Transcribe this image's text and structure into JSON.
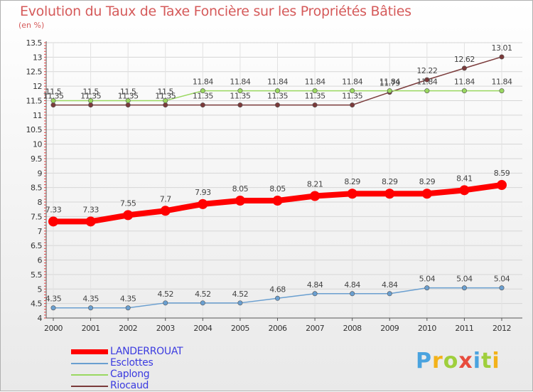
{
  "chart_data": {
    "type": "line",
    "title": "Evolution du Taux de Taxe Foncière sur les Propriétés Bâties",
    "subtitle": "(en %)",
    "x": [
      "2000",
      "2001",
      "2002",
      "2003",
      "2004",
      "2005",
      "2006",
      "2007",
      "2008",
      "2009",
      "2010",
      "2011",
      "2012"
    ],
    "ylim": [
      4,
      13.5
    ],
    "yticks": [
      "4",
      "4.5",
      "5",
      "5.5",
      "6",
      "6.5",
      "7",
      "7.5",
      "8",
      "8.5",
      "9",
      "9.5",
      "10",
      "10.5",
      "11",
      "11.5",
      "12",
      "12.5",
      "13",
      "13.5"
    ],
    "series": [
      {
        "name": "LANDERROUAT",
        "color": "#ff0000",
        "values": [
          7.33,
          7.33,
          7.55,
          7.7,
          7.93,
          8.05,
          8.05,
          8.21,
          8.29,
          8.29,
          8.29,
          8.41,
          8.59
        ],
        "labels": [
          "7.33",
          "7.33",
          "7.55",
          "7.7",
          "7.93",
          "8.05",
          "8.05",
          "8.21",
          "8.29",
          "8.29",
          "8.29",
          "8.41",
          "8.59"
        ]
      },
      {
        "name": "Esclottes",
        "color": "#6a9fd0",
        "values": [
          4.35,
          4.35,
          4.35,
          4.52,
          4.52,
          4.52,
          4.68,
          4.84,
          4.84,
          4.84,
          5.04,
          5.04,
          5.04
        ],
        "labels": [
          "4.35",
          "4.35",
          "4.35",
          "4.52",
          "4.52",
          "4.52",
          "4.68",
          "4.84",
          "4.84",
          "4.84",
          "5.04",
          "5.04",
          "5.04"
        ]
      },
      {
        "name": "Caplong",
        "color": "#9ad860",
        "values": [
          11.5,
          11.5,
          11.5,
          11.5,
          11.84,
          11.84,
          11.84,
          11.84,
          11.84,
          11.84,
          11.84,
          11.84,
          11.84
        ],
        "labels": [
          "11.5",
          "11.5",
          "11.5",
          "11.5",
          "11.84",
          "11.84",
          "11.84",
          "11.84",
          "11.84",
          "11.84",
          "11.84",
          "11.84",
          "11.84"
        ]
      },
      {
        "name": "Riocaud",
        "color": "#7a3a3a",
        "values": [
          11.35,
          11.35,
          11.35,
          11.35,
          11.35,
          11.35,
          11.35,
          11.35,
          11.35,
          11.79,
          12.22,
          12.62,
          13.01
        ],
        "labels": [
          "11.35",
          "11.35",
          "11.35",
          "11.35",
          "11.35",
          "11.35",
          "11.35",
          "11.35",
          "11.35",
          "11.79",
          "12.22",
          "12.62",
          "13.01"
        ]
      }
    ],
    "legend": [
      "LANDERROUAT",
      "Esclottes",
      "Caplong",
      "Riocaud"
    ]
  },
  "logo": {
    "letters": [
      "P",
      "r",
      "o",
      "x",
      "i",
      "t",
      "i"
    ],
    "colors": [
      "#4aa3df",
      "#f3b21a",
      "#9fcf3c",
      "#e84c3d",
      "#4aa3df",
      "#9fcf3c",
      "#f3b21a"
    ]
  }
}
